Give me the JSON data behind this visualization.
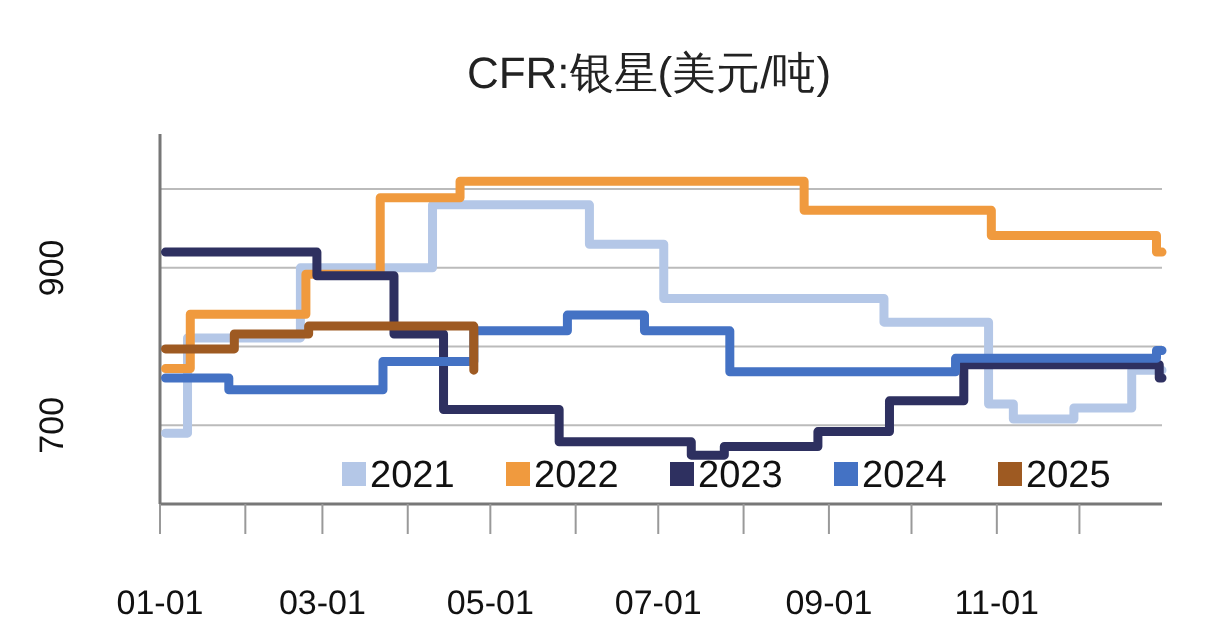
{
  "chart_data": {
    "type": "step",
    "title": "CFR:银星(美元/吨)",
    "xlim": [
      "--01-01",
      "--12-31"
    ],
    "xticks": [
      {
        "value": "--01-01",
        "label": "01-01"
      },
      {
        "value": "--02-01",
        "label": null
      },
      {
        "value": "--03-01",
        "label": "03-01"
      },
      {
        "value": "--04-01",
        "label": null
      },
      {
        "value": "--05-01",
        "label": "05-01"
      },
      {
        "value": "--06-01",
        "label": null
      },
      {
        "value": "--07-01",
        "label": "07-01"
      },
      {
        "value": "--08-01",
        "label": null
      },
      {
        "value": "--09-01",
        "label": "09-01"
      },
      {
        "value": "--10-01",
        "label": null
      },
      {
        "value": "--11-01",
        "label": "11-01"
      },
      {
        "value": "--12-01",
        "label": null
      }
    ],
    "ylim": [
      600,
      1070
    ],
    "yticks": [
      700,
      {
        "value": 800,
        "label": null
      },
      900,
      {
        "value": 1000,
        "label": null
      }
    ],
    "grid": "y",
    "legend": "bottom right",
    "line_style": "solid",
    "marker": "none",
    "series": [
      {
        "name": "2021",
        "color": "#b4c7e7",
        "x": [
          "--01-03",
          "--01-11",
          "--02-21",
          "--04-10",
          "--06-06",
          "--07-03",
          "--09-21",
          "--10-29",
          "--11-07",
          "--11-29",
          "--12-20",
          "--12-31"
        ],
        "values": [
          690,
          811,
          900,
          980,
          930,
          861,
          831,
          727,
          708,
          722,
          770,
          770
        ]
      },
      {
        "name": "2022",
        "color": "#f09a3e",
        "x": [
          "--01-03",
          "--01-12",
          "--02-23",
          "--03-22",
          "--04-20",
          "--08-23",
          "--10-30",
          "--12-29",
          "--12-31"
        ],
        "values": [
          772,
          841,
          892,
          989,
          1010,
          973,
          941,
          920,
          920
        ]
      },
      {
        "name": "2023",
        "color": "#2e3060",
        "x": [
          "--01-03",
          "--02-27",
          "--03-27",
          "--04-14",
          "--05-26",
          "--07-13",
          "--07-25",
          "--08-28",
          "--09-23",
          "--10-20",
          "--12-30",
          "--12-31"
        ],
        "values": [
          920,
          890,
          816,
          720,
          679,
          662,
          673,
          692,
          731,
          777,
          760,
          760
        ]
      },
      {
        "name": "2024",
        "color": "#4472c4",
        "x": [
          "--01-03",
          "--01-26",
          "--03-23",
          "--04-25",
          "--05-29",
          "--06-26",
          "--07-27",
          "--10-17",
          "--12-29",
          "--12-31"
        ],
        "values": [
          760,
          745,
          781,
          820,
          840,
          820,
          768,
          785,
          795,
          795
        ]
      },
      {
        "name": "2025",
        "color": "#9e5a22",
        "x": [
          "--01-03",
          "--01-28",
          "--02-24",
          "--04-24",
          "--04-25"
        ],
        "values": [
          797,
          816,
          826,
          826,
          770
        ]
      }
    ]
  }
}
